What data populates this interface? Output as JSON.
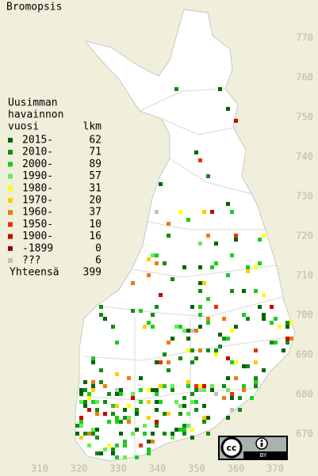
{
  "title": "Bromopsis",
  "legend": {
    "heading": [
      "Uusimman",
      "havainnon",
      "vuosi"
    ],
    "count_heading": "lkm",
    "rows": [
      {
        "label": "2015-",
        "count": 62,
        "color": "#006400"
      },
      {
        "label": "2010-",
        "count": 71,
        "color": "#138a13"
      },
      {
        "label": "2000-",
        "count": 89,
        "color": "#1ecb1e"
      },
      {
        "label": "1990-",
        "count": 57,
        "color": "#66ee55"
      },
      {
        "label": "1980-",
        "count": 31,
        "color": "#ffff00"
      },
      {
        "label": "1970-",
        "count": 20,
        "color": "#ffcc00"
      },
      {
        "label": "1960-",
        "count": 37,
        "color": "#f07a10"
      },
      {
        "label": "1950-",
        "count": 10,
        "color": "#e83010"
      },
      {
        "label": "1900-",
        "count": 16,
        "color": "#c80000"
      },
      {
        "label": "-1899",
        "count": 0,
        "color": "#8c0000"
      },
      {
        "label": "???",
        "count": 6,
        "color": "#c0c0c0"
      }
    ],
    "total_label": "Yhteensä",
    "total": 399
  },
  "x_ticks": [
    310,
    320,
    330,
    340,
    350,
    360,
    370
  ],
  "y_ticks": [
    770,
    760,
    750,
    740,
    730,
    720,
    710,
    700,
    690,
    680,
    670
  ],
  "badge": {
    "cc": "cc",
    "by": "BY"
  }
}
